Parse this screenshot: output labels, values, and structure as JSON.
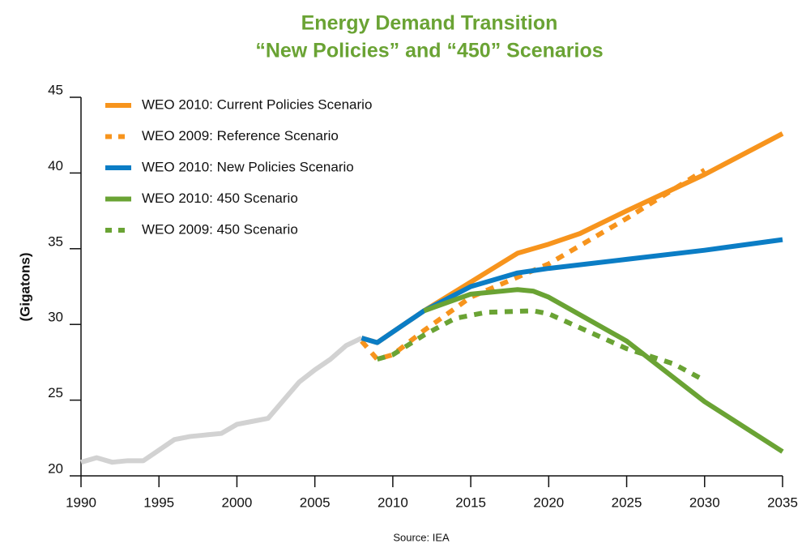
{
  "chart_data": {
    "type": "line",
    "title": "Energy Demand Transition",
    "subtitle": "“New Policies” and “450” Scenarios",
    "ylabel": "(Gigatons)",
    "source": "Source: IEA",
    "xlim": [
      1990,
      2035
    ],
    "xticks": [
      1990,
      1995,
      2000,
      2005,
      2010,
      2015,
      2020,
      2025,
      2030,
      2035
    ],
    "ylim": [
      20,
      45
    ],
    "yticks": [
      20,
      25,
      30,
      35,
      40,
      45
    ],
    "grid": false,
    "legend": "upper left",
    "series": [
      {
        "color": "#d2d2d2",
        "style": "solid",
        "x": [
          1990,
          1991,
          1992,
          1993,
          1994,
          1995,
          1996,
          1997,
          1998,
          1999,
          2000,
          2001,
          2002,
          2003,
          2004,
          2005,
          2006,
          2007,
          2008
        ],
        "values": [
          20.9,
          21.2,
          20.9,
          21.0,
          21.0,
          21.7,
          22.4,
          22.6,
          22.7,
          22.8,
          23.4,
          23.6,
          23.8,
          25.0,
          26.2,
          27.0,
          27.7,
          28.6,
          29.1
        ]
      },
      {
        "name": "WEO 2010: Current Policies Scenario",
        "color": "#f7941d",
        "style": "solid",
        "x": [
          2008,
          2009,
          2010,
          2012,
          2015,
          2018,
          2020,
          2022,
          2025,
          2030,
          2035
        ],
        "values": [
          29.1,
          28.8,
          29.5,
          30.9,
          32.8,
          34.7,
          35.3,
          36.0,
          37.5,
          39.9,
          42.6
        ]
      },
      {
        "name": "WEO 2009: Reference Scenario",
        "color": "#f7941d",
        "style": "dotted",
        "x": [
          2008,
          2009,
          2010,
          2012,
          2015,
          2020,
          2025,
          2030
        ],
        "values": [
          28.9,
          27.7,
          28.0,
          29.6,
          31.8,
          34.0,
          37.0,
          40.2
        ]
      },
      {
        "name": "WEO 2010: New Policies Scenario",
        "color": "#0b7dc5",
        "style": "solid",
        "x": [
          2008,
          2009,
          2010,
          2012,
          2015,
          2018,
          2020,
          2025,
          2030,
          2035
        ],
        "values": [
          29.1,
          28.8,
          29.5,
          30.9,
          32.5,
          33.4,
          33.7,
          34.3,
          34.9,
          35.6
        ]
      },
      {
        "name": "WEO 2010: 450 Scenario",
        "color": "#6aa334",
        "style": "solid",
        "x": [
          2012,
          2015,
          2018,
          2019,
          2020,
          2025,
          2030,
          2035
        ],
        "values": [
          30.9,
          32.0,
          32.3,
          32.2,
          31.8,
          28.9,
          24.9,
          21.6
        ]
      },
      {
        "name": "WEO 2009: 450 Scenario",
        "color": "#6aa334",
        "style": "dotted",
        "x": [
          2009,
          2010,
          2012,
          2014,
          2016,
          2019,
          2020,
          2025,
          2028,
          2030
        ],
        "values": [
          27.7,
          28.0,
          29.3,
          30.4,
          30.8,
          30.9,
          30.7,
          28.4,
          27.4,
          26.3
        ]
      }
    ]
  }
}
